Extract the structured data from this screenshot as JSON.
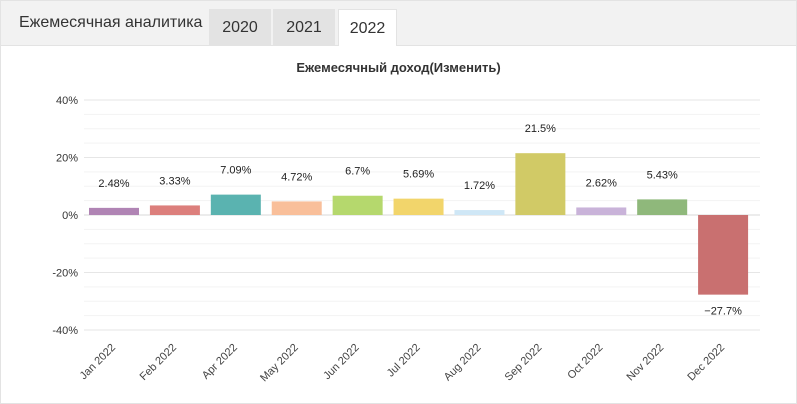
{
  "tabs": {
    "title": "Ежемесячная аналитика",
    "years": [
      "2020",
      "2021",
      "2022"
    ],
    "active": "2022"
  },
  "chart_data": {
    "type": "bar",
    "title": "Ежемесячный доход(Изменить)",
    "xlabel": "",
    "ylabel": "",
    "categories": [
      "Jan 2022",
      "Feb 2022",
      "Apr 2022",
      "May 2022",
      "Jun 2022",
      "Jul 2022",
      "Aug 2022",
      "Sep 2022",
      "Oct 2022",
      "Nov 2022",
      "Dec 2022"
    ],
    "values": [
      2.48,
      3.33,
      7.09,
      4.72,
      6.7,
      5.69,
      1.72,
      21.5,
      2.62,
      5.43,
      -27.7
    ],
    "data_labels": [
      "2.48%",
      "3.33%",
      "7.09%",
      "4.72%",
      "6.7%",
      "5.69%",
      "1.72%",
      "21.5%",
      "2.62%",
      "5.43%",
      "−27.7%"
    ],
    "colors": [
      "#b084b4",
      "#dc7f7c",
      "#5ab3b0",
      "#f9bf9a",
      "#b5d86d",
      "#f2d56b",
      "#cfe7f6",
      "#d1ca66",
      "#c9b3d9",
      "#8fb87b",
      "#c97070"
    ],
    "ylim": [
      -40,
      40
    ],
    "yticks": [
      -40,
      -20,
      0,
      20,
      40
    ],
    "ytick_labels": [
      "-40%",
      "-20%",
      "0%",
      "20%",
      "40%"
    ],
    "grid": true,
    "legend": "none"
  }
}
